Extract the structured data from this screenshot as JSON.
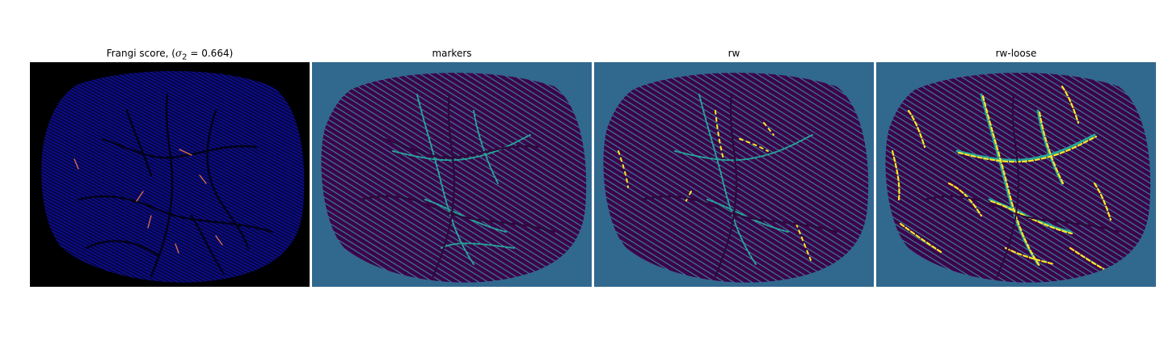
{
  "panels": [
    {
      "id": "frangi",
      "title_prefix": "Frangi score, (",
      "title_symbol": "σ",
      "title_subscript": "2",
      "title_suffix": " = 0.664)",
      "background": "#000000",
      "base": "#0c0c8a",
      "dark": "#03031f",
      "highlight": "#e0744a"
    },
    {
      "id": "markers",
      "title": "markers",
      "background": "#31688e",
      "base": "#440154",
      "dark": "#2b0a3a",
      "highlight": "#26a69a"
    },
    {
      "id": "rw",
      "title": "rw",
      "background": "#31688e",
      "base": "#440154",
      "dark": "#2b0a3a",
      "highlight": "#26a69a",
      "accent": "#fde725"
    },
    {
      "id": "rw-loose",
      "title": "rw-loose",
      "background": "#31688e",
      "base": "#440154",
      "dark": "#2b0a3a",
      "highlight": "#26a69a",
      "accent": "#fde725"
    }
  ]
}
